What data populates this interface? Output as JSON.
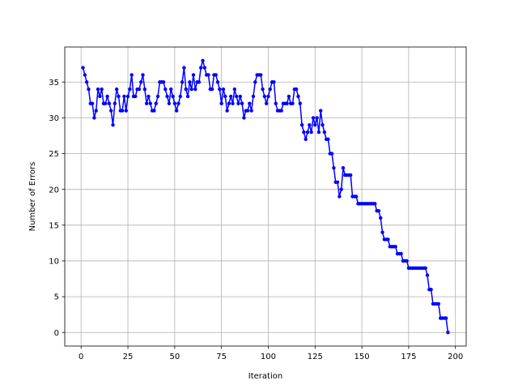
{
  "chart_data": {
    "type": "line",
    "title": "",
    "xlabel": "Iteration",
    "ylabel": "Number of Errors",
    "xlim": [
      -8.75,
      205.75
    ],
    "ylim": [
      -1.9,
      39.9
    ],
    "xticks": [
      0,
      25,
      50,
      75,
      100,
      125,
      150,
      175,
      200
    ],
    "yticks": [
      0,
      5,
      10,
      15,
      20,
      25,
      30,
      35
    ],
    "grid": true,
    "colors": {
      "series": "#0000ff",
      "grid": "#b0b0b0",
      "axes": "#000000"
    },
    "series": [
      {
        "x": [
          1,
          2,
          3,
          4,
          5,
          6,
          7,
          8,
          9,
          10,
          11,
          12,
          13,
          14,
          15,
          16,
          17,
          18,
          19,
          20,
          21,
          22,
          23,
          24,
          25,
          26,
          27,
          28,
          29,
          30,
          31,
          32,
          33,
          34,
          35,
          36,
          37,
          38,
          39,
          40,
          41,
          42,
          43,
          44,
          45,
          46,
          47,
          48,
          49,
          50,
          51,
          52,
          53,
          54,
          55,
          56,
          57,
          58,
          59,
          60,
          61,
          62,
          63,
          64,
          65,
          66,
          67,
          68,
          69,
          70,
          71,
          72,
          73,
          74,
          75,
          76,
          77,
          78,
          79,
          80,
          81,
          82,
          83,
          84,
          85,
          86,
          87,
          88,
          89,
          90,
          91,
          92,
          93,
          94,
          95,
          96,
          97,
          98,
          99,
          100,
          101,
          102,
          103,
          104,
          105,
          106,
          107,
          108,
          109,
          110,
          111,
          112,
          113,
          114,
          115,
          116,
          117,
          118,
          119,
          120,
          121,
          122,
          123,
          124,
          125,
          126,
          127,
          128,
          129,
          130,
          131,
          132,
          133,
          134,
          135,
          136,
          137,
          138,
          139,
          140,
          141,
          142,
          143,
          144,
          145,
          146,
          147,
          148,
          149,
          150,
          151,
          152,
          153,
          154,
          155,
          156,
          157,
          158,
          159,
          160,
          161,
          162,
          163,
          164,
          165,
          166,
          167,
          168,
          169,
          170,
          171,
          172,
          173,
          174,
          175,
          176,
          177,
          178,
          179,
          180,
          181,
          182,
          183,
          184,
          185,
          186,
          187,
          188,
          189,
          190,
          191,
          192,
          193,
          194,
          195,
          196
        ],
        "values": [
          37,
          36,
          35,
          34,
          32,
          32,
          30,
          31,
          34,
          33,
          34,
          32,
          32,
          33,
          32,
          31,
          29,
          32,
          34,
          33,
          31,
          31,
          33,
          31,
          33,
          34,
          36,
          33,
          33,
          34,
          34,
          35,
          36,
          34,
          32,
          33,
          32,
          31,
          31,
          32,
          33,
          35,
          35,
          35,
          34,
          33,
          32,
          34,
          33,
          32,
          31,
          32,
          33,
          35,
          37,
          34,
          33,
          35,
          34,
          36,
          34,
          35,
          35,
          37,
          38,
          37,
          36,
          36,
          34,
          34,
          36,
          36,
          35,
          34,
          32,
          34,
          33,
          31,
          32,
          33,
          32,
          34,
          33,
          32,
          33,
          32,
          30,
          31,
          31,
          32,
          31,
          33,
          35,
          36,
          36,
          36,
          34,
          33,
          32,
          33,
          34,
          35,
          35,
          32,
          31,
          31,
          31,
          32,
          32,
          32,
          33,
          32,
          32,
          34,
          34,
          33,
          32,
          29,
          28,
          27,
          28,
          29,
          28,
          30,
          29,
          30,
          28,
          31,
          29,
          28,
          27,
          27,
          25,
          25,
          23,
          21,
          21,
          19,
          20,
          23,
          22,
          22,
          22,
          22,
          19,
          19,
          19,
          18,
          18,
          18,
          18,
          18,
          18,
          18,
          18,
          18,
          18,
          17,
          17,
          16,
          14,
          13,
          13,
          13,
          12,
          12,
          12,
          12,
          11,
          11,
          11,
          10,
          10,
          10,
          9,
          9,
          9,
          9,
          9,
          9,
          9,
          9,
          9,
          9,
          8,
          6,
          6,
          4,
          4,
          4,
          4,
          2,
          2,
          2,
          2,
          0
        ]
      }
    ]
  }
}
